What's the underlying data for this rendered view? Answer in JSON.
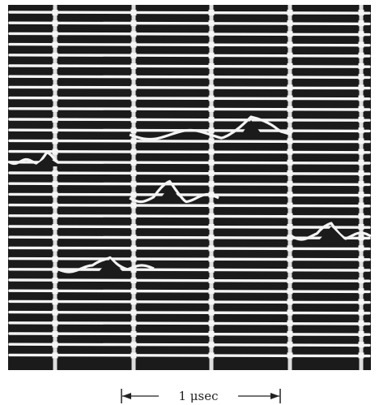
{
  "figure": {
    "scale_label": "1 μsec"
  },
  "colors": {
    "screen_background": "#1b1b1b",
    "trace": "#f4f4f4",
    "paper": "#ffffff",
    "ink": "#222222"
  }
}
